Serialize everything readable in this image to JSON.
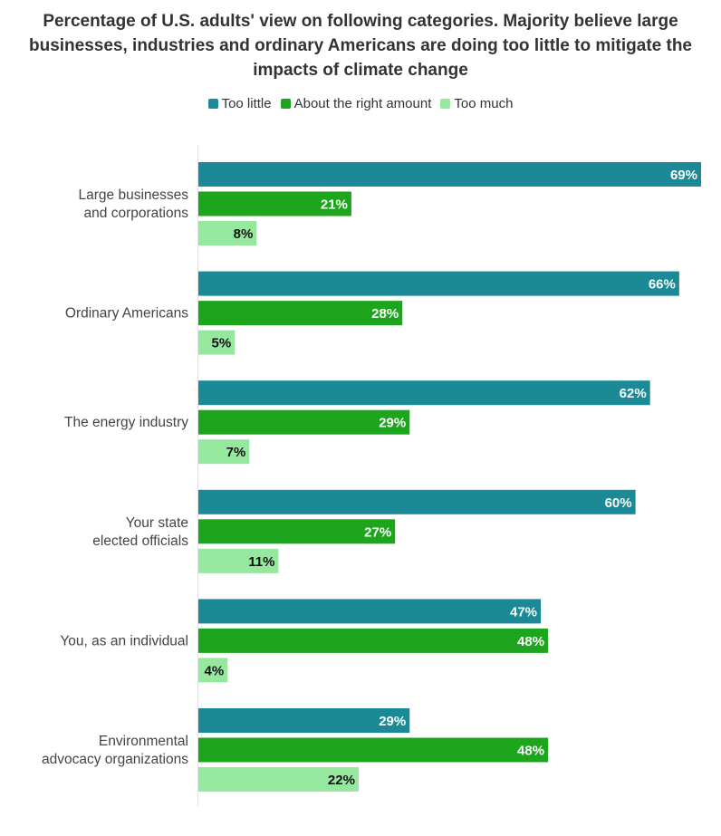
{
  "chart_data": {
    "type": "bar",
    "orientation": "horizontal",
    "title": "Percentage of U.S. adults' view on following categories. Majority believe large businesses, industries and ordinary Americans are doing too little to mitigate the impacts of climate change",
    "categories": [
      "Large businesses and corporations",
      "Ordinary Americans",
      "The energy industry",
      "Your state elected officials",
      "You, as an individual",
      "Environmental advocacy organizations"
    ],
    "series": [
      {
        "name": "Too little",
        "values": [
          69,
          66,
          62,
          60,
          47,
          29
        ],
        "color": "#1b8a96",
        "label_color": "#ffffff"
      },
      {
        "name": "About the right amount",
        "values": [
          21,
          28,
          29,
          27,
          48,
          48
        ],
        "color": "#1ea51e",
        "label_color": "#ffffff"
      },
      {
        "name": "Too much",
        "values": [
          8,
          5,
          7,
          11,
          4,
          22
        ],
        "color": "#96e89e",
        "label_color": "#111111"
      }
    ],
    "value_suffix": "%",
    "xlim": [
      0,
      69
    ],
    "legend_position": "top",
    "grid": false
  }
}
